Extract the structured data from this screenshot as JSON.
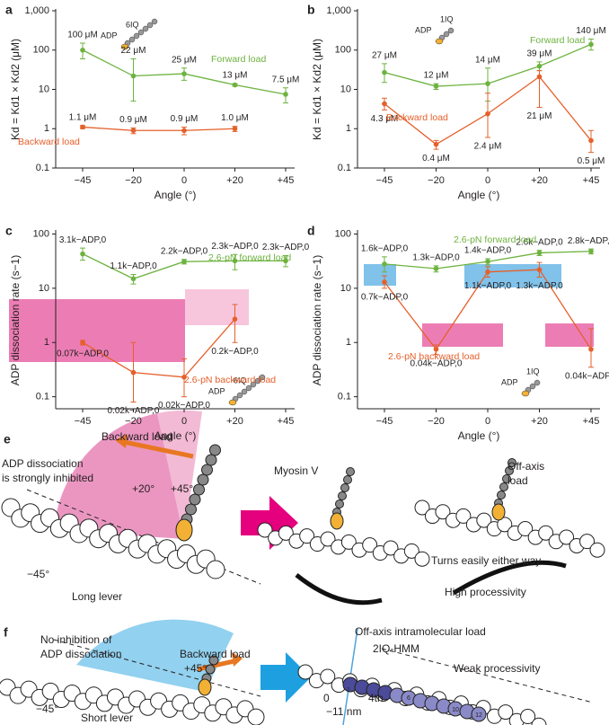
{
  "chart_data": [
    {
      "type": "line",
      "label": "a",
      "log_y": true,
      "x_label": "Angle (°)",
      "y_label": "Kd = Kd1 × Kd2 (μM)",
      "categories": [
        "−45",
        "−20",
        "0",
        "+20",
        "+45"
      ],
      "ylim": [
        0.1,
        1000
      ],
      "yticks": [
        0.1,
        1,
        10,
        100,
        {
          "value": 1000,
          "label": "1,000"
        }
      ],
      "inset": [
        "ADP",
        "6IQ"
      ],
      "series": [
        {
          "name": "Forward load",
          "color": "#6db33f",
          "values": [
            100,
            22,
            25,
            13,
            7.5
          ],
          "err_low": [
            60,
            5,
            17,
            12,
            4.5
          ],
          "err_high": [
            150,
            60,
            35,
            14,
            11
          ],
          "value_labels": [
            "100 μM",
            "22 μM",
            "25 μM",
            "13 μM",
            "7.5 μM"
          ]
        },
        {
          "name": "Backward load",
          "color": "#e5602b",
          "values": [
            1.1,
            0.9,
            0.9,
            1.0,
            null
          ],
          "err_low": [
            1.0,
            0.75,
            0.7,
            0.85,
            null
          ],
          "err_high": [
            1.2,
            1.05,
            1.1,
            1.15,
            null
          ],
          "value_labels": [
            "1.1 μM",
            "0.9 μM",
            "0.9 μM",
            "1.0 μM",
            null
          ]
        }
      ]
    },
    {
      "type": "line",
      "label": "b",
      "log_y": true,
      "x_label": "Angle (°)",
      "y_label": "Kd = Kd1 × Kd2 (μM)",
      "categories": [
        "−45",
        "−20",
        "0",
        "+20",
        "+45"
      ],
      "ylim": [
        0.1,
        1000
      ],
      "yticks": [
        0.1,
        1,
        10,
        100,
        {
          "value": 1000,
          "label": "1,000"
        }
      ],
      "inset": [
        "ADP",
        "1IQ"
      ],
      "series": [
        {
          "name": "Forward load",
          "color": "#6db33f",
          "values": [
            27,
            12,
            14,
            39,
            140
          ],
          "err_low": [
            15,
            10,
            5,
            30,
            100
          ],
          "err_high": [
            45,
            14,
            35,
            50,
            190
          ],
          "value_labels": [
            "27 μM",
            "12 μM",
            "14 μM",
            "39 μM",
            "140 μM"
          ]
        },
        {
          "name": "Backward load",
          "color": "#e5602b",
          "values": [
            4.3,
            0.4,
            2.4,
            21,
            0.5
          ],
          "err_low": [
            3,
            0.3,
            0.6,
            3.5,
            0.25
          ],
          "err_high": [
            6,
            0.5,
            8,
            30,
            0.9
          ],
          "value_labels": [
            "4.3 μM",
            "0.4 μM",
            "2.4 μM",
            "21 μM",
            "0.5 μM"
          ]
        }
      ]
    },
    {
      "type": "line",
      "label": "c",
      "log_y": true,
      "x_label": "Angle (°)",
      "y_label": "ADP dissociation rate (s−1)",
      "categories": [
        "−45",
        "−20",
        "0",
        "+20",
        "+45"
      ],
      "ylim": [
        0.06,
        110
      ],
      "yticks": [
        0.1,
        1,
        10,
        100
      ],
      "inset": [
        "ADP",
        "6IQ"
      ],
      "series": [
        {
          "name": "2.6-pN forward load",
          "color": "#6db33f",
          "values": [
            43,
            15,
            31,
            32,
            32
          ],
          "err_low": [
            33,
            12,
            28,
            22,
            25
          ],
          "err_high": [
            55,
            18,
            34,
            42,
            40
          ],
          "value_labels": [
            "3.1k−ADP,0",
            "1.1k−ADP,0",
            "2.2k−ADP,0",
            "2.3k−ADP,0",
            "2.3k−ADP,0"
          ]
        },
        {
          "name": "2.6-pN backward load",
          "color": "#e5602b",
          "values": [
            1.0,
            0.28,
            0.23,
            2.7,
            null
          ],
          "err_low": [
            0.9,
            0.08,
            0.1,
            1.0,
            null
          ],
          "err_high": [
            1.1,
            1.0,
            0.5,
            5,
            null
          ],
          "value_labels": [
            "0.07k−ADP,0",
            "0.02k−ADP,0",
            "0.02k−ADP,0",
            "0.2k−ADP,0",
            null
          ]
        }
      ]
    },
    {
      "type": "line",
      "label": "d",
      "log_y": true,
      "x_label": "Angle (°)",
      "y_label": "ADP dissociation rate (s−1)",
      "categories": [
        "−45",
        "−20",
        "0",
        "+20",
        "+45"
      ],
      "ylim": [
        0.06,
        110
      ],
      "yticks": [
        0.1,
        1,
        10,
        100
      ],
      "inset": [
        "ADP",
        "1IQ"
      ],
      "series": [
        {
          "name": "2.6-pN forward load",
          "color": "#6db33f",
          "values": [
            28,
            23,
            31,
            45,
            48
          ],
          "err_low": [
            20,
            20,
            27,
            40,
            43
          ],
          "err_high": [
            38,
            26,
            35,
            50,
            53
          ],
          "value_labels": [
            "1.6k−ADP,0",
            "1.3k−ADP,0",
            "1.4k−ADP,0",
            "2.6k−ADP,0",
            "2.8k−ADP,0"
          ]
        },
        {
          "name": "2.6-pN backward load",
          "color": "#e5602b",
          "values": [
            13,
            0.75,
            20,
            22,
            0.75
          ],
          "err_low": [
            10,
            0.6,
            16,
            16,
            0.35
          ],
          "err_high": [
            17,
            0.9,
            25,
            30,
            1.8
          ],
          "value_labels": [
            "0.7k−ADP,0",
            "0.04k−ADP,0",
            "1.1k−ADP,0",
            "1.3k−ADP,0",
            "0.04k−ADP,0"
          ]
        }
      ]
    }
  ],
  "diagram_e": {
    "label": "e",
    "texts": [
      "Backward load",
      "ADP dissociation",
      "is strongly inhibited",
      "+20°",
      "+45°",
      "−45°",
      "Long lever",
      "Myosin V",
      "Off-axis",
      "load",
      "Turns easily either way",
      "High processivity"
    ]
  },
  "diagram_f": {
    "label": "f",
    "texts": [
      "No inhibition of",
      "ADP dissociation",
      "Backward load",
      "+45°",
      "−45°",
      "Short lever",
      "Off-axis intramolecular load",
      "2IQ-HMM",
      "Weak processivity",
      "0",
      "−11 nm",
      "4th",
      "1",
      "6",
      "10",
      "12"
    ]
  }
}
